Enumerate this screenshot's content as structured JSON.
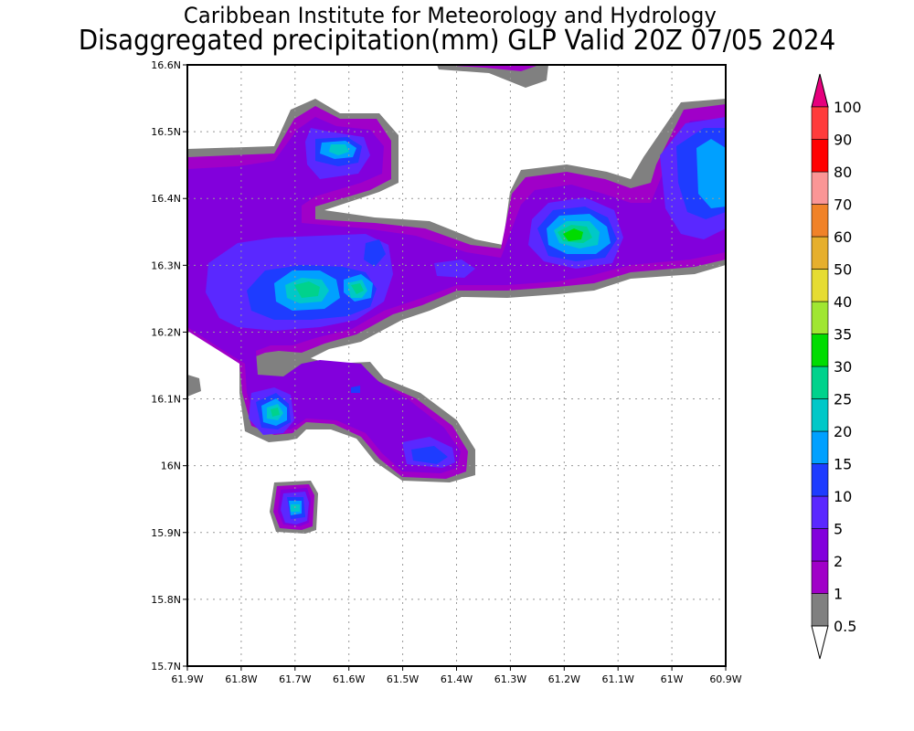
{
  "header": {
    "title_line1": "Caribbean Institute for Meteorology and Hydrology",
    "title_line2": "Disaggregated precipitation(mm) GLP Valid 20Z 07/05 2024"
  },
  "map": {
    "lon_ticks": [
      "61.9W",
      "61.8W",
      "61.7W",
      "61.6W",
      "61.5W",
      "61.4W",
      "61.3W",
      "61.2W",
      "61.1W",
      "61W",
      "60.9W"
    ],
    "lat_ticks": [
      "16.6N",
      "16.5N",
      "16.4N",
      "16.3N",
      "16.2N",
      "16.1N",
      "16N",
      "15.9N",
      "15.8N",
      "15.7N"
    ],
    "lon_range": [
      -61.9,
      -60.9
    ],
    "lat_range": [
      15.7,
      16.6
    ],
    "grid": true
  },
  "colorbar": {
    "levels": [
      "0.5",
      "1",
      "2",
      "5",
      "10",
      "15",
      "20",
      "25",
      "30",
      "35",
      "40",
      "50",
      "60",
      "70",
      "80",
      "90",
      "100"
    ],
    "colors": [
      "#808080",
      "#a000c8",
      "#8200dc",
      "#5a28ff",
      "#1e3cff",
      "#00a0ff",
      "#00c8c8",
      "#00d28c",
      "#00dc00",
      "#a0e632",
      "#e6dc32",
      "#e6af2d",
      "#f08228",
      "#fa9696",
      "#ff0000",
      "#ff3c3c"
    ],
    "top_arrow_color": "#e6007d",
    "bottom_arrow_color": "#ffffff"
  },
  "regions": [
    {
      "name": "north-west-band",
      "lon": -61.75,
      "lat": 16.42,
      "level": "2"
    },
    {
      "name": "north-cell",
      "lon": -61.62,
      "lat": 16.48,
      "level": "15"
    },
    {
      "name": "central-cell-a",
      "lon": -61.68,
      "lat": 16.265,
      "level": "20"
    },
    {
      "name": "central-cell-b",
      "lon": -61.59,
      "lat": 16.265,
      "level": "20"
    },
    {
      "name": "east-cell",
      "lon": -61.19,
      "lat": 16.345,
      "level": "30"
    },
    {
      "name": "far-east-cell",
      "lon": -60.93,
      "lat": 16.43,
      "level": "15"
    },
    {
      "name": "south-west-cell",
      "lon": -61.74,
      "lat": 16.08,
      "level": "20"
    },
    {
      "name": "south-cell",
      "lon": -61.45,
      "lat": 16.01,
      "level": "10"
    },
    {
      "name": "isolated-cell",
      "lon": -61.7,
      "lat": 15.94,
      "level": "20"
    }
  ]
}
